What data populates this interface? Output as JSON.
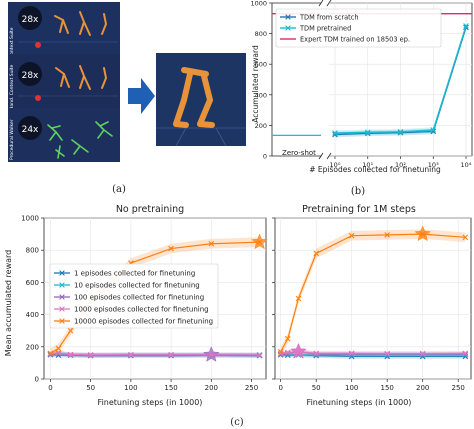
{
  "panel_labels": {
    "a": "(a)",
    "b": "(b)",
    "c": "(c)"
  },
  "panel_a": {
    "rows": [
      {
        "badge": "28x",
        "side_label": "Context Suite"
      },
      {
        "badge": "28x",
        "side_label": "Hand. Context Suite"
      },
      {
        "badge": "24x",
        "side_label": "Procedural Walker"
      }
    ],
    "arrow_color": "#1f5fb4",
    "thumb_bg": "#1c2a4a",
    "agent_color": "#e8923a"
  },
  "colors": {
    "scratch": "#1f77b4",
    "pretrained": "#17becf",
    "expert": "#d62a6a",
    "ep1": "#1f77b4",
    "ep10": "#17becf",
    "ep100": "#9467bd",
    "ep1000": "#e377c2",
    "ep10000": "#ff7f0e"
  },
  "chart_data": [
    {
      "id": "b",
      "type": "line",
      "xscale": "log",
      "x": [
        1,
        10,
        100,
        1000,
        10000
      ],
      "xtick_labels": [
        "10⁰",
        "10¹",
        "10²",
        "10³",
        "10⁴"
      ],
      "extra_xtick": "Zero-shot",
      "xlabel": "# Episodes collected for finetuning",
      "ylabel": "Accumulated reward",
      "ylim": [
        0,
        1000
      ],
      "yticks": [
        0,
        200,
        400,
        600,
        800,
        1000
      ],
      "legend": "top-left",
      "series": [
        {
          "name": "TDM from scratch",
          "key": "scratch",
          "marker": "x",
          "values": [
            140,
            148,
            152,
            160,
            840
          ]
        },
        {
          "name": "TDM pretrained",
          "key": "pretrained",
          "marker": "x",
          "zero_shot": 135,
          "values": [
            150,
            155,
            158,
            170,
            850
          ]
        },
        {
          "name": "Expert TDM trained on 18503 ep.",
          "key": "expert",
          "marker": "none",
          "constant": 930
        }
      ]
    },
    {
      "id": "c-left",
      "type": "line",
      "title": "No pretraining",
      "x": [
        0,
        10,
        25,
        50,
        100,
        150,
        200,
        260
      ],
      "xticks": [
        0,
        50,
        100,
        150,
        200,
        250
      ],
      "xlabel": "Finetuning steps (in 1000)",
      "ylabel": "Mean accumulated reward",
      "ylim": [
        0,
        1000
      ],
      "yticks": [
        0,
        200,
        400,
        600,
        800,
        1000
      ],
      "legend": "center-left",
      "star_x": [
        null,
        null,
        null,
        null,
        200
      ],
      "series": [
        {
          "name": "1 episodes collected for finetuning",
          "key": "ep1",
          "values": [
            150,
            148,
            147,
            145,
            145,
            145,
            147,
            145
          ]
        },
        {
          "name": "10 episodes collected for finetuning",
          "key": "ep10",
          "values": [
            155,
            160,
            150,
            148,
            150,
            150,
            150,
            150
          ]
        },
        {
          "name": "100 episodes collected for finetuning",
          "key": "ep100",
          "values": [
            155,
            160,
            150,
            148,
            150,
            150,
            150,
            148
          ],
          "star_at": 200
        },
        {
          "name": "1000 episodes collected for finetuning",
          "key": "ep1000",
          "values": [
            158,
            162,
            152,
            150,
            150,
            150,
            150,
            150
          ]
        },
        {
          "name": "10000 episodes collected for finetuning",
          "key": "ep10000",
          "values": [
            160,
            190,
            300,
            480,
            720,
            810,
            840,
            850
          ],
          "star_at": 260
        }
      ]
    },
    {
      "id": "c-right",
      "type": "line",
      "title": "Pretraining for 1M steps",
      "x": [
        0,
        10,
        25,
        50,
        100,
        150,
        200,
        260
      ],
      "xticks": [
        0,
        50,
        100,
        150,
        200,
        250
      ],
      "xlabel": "Finetuning steps (in 1000)",
      "ylim": [
        0,
        1000
      ],
      "series": [
        {
          "name": "1 episodes collected for finetuning",
          "key": "ep1",
          "values": [
            150,
            148,
            150,
            145,
            140,
            140,
            140,
            140
          ]
        },
        {
          "name": "10 episodes collected for finetuning",
          "key": "ep10",
          "values": [
            155,
            155,
            150,
            150,
            150,
            150,
            150,
            150
          ]
        },
        {
          "name": "100 episodes collected for finetuning",
          "key": "ep100",
          "values": [
            150,
            160,
            170,
            155,
            155,
            155,
            155,
            155
          ],
          "star_at": 25
        },
        {
          "name": "1000 episodes collected for finetuning",
          "key": "ep1000",
          "values": [
            160,
            165,
            170,
            160,
            160,
            158,
            158,
            160
          ],
          "star_at": 25
        },
        {
          "name": "10000 episodes collected for finetuning",
          "key": "ep10000",
          "values": [
            170,
            250,
            500,
            780,
            890,
            895,
            900,
            880
          ],
          "star_at": 200
        }
      ]
    }
  ]
}
